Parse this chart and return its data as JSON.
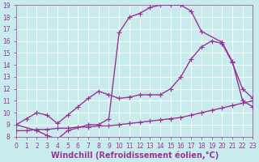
{
  "xlabel": "Windchill (Refroidissement éolien,°C)",
  "ylabel": "",
  "background_color": "#c8ecec",
  "line_color": "#993399",
  "xlim": [
    0,
    23
  ],
  "ylim": [
    8,
    19
  ],
  "xticks": [
    0,
    1,
    2,
    3,
    4,
    5,
    6,
    7,
    8,
    9,
    10,
    11,
    12,
    13,
    14,
    15,
    16,
    17,
    18,
    19,
    20,
    21,
    22,
    23
  ],
  "yticks": [
    8,
    9,
    10,
    11,
    12,
    13,
    14,
    15,
    16,
    17,
    18,
    19
  ],
  "line1_x": [
    0,
    2,
    3,
    4,
    5,
    7,
    8,
    9,
    10,
    11,
    12,
    13,
    14,
    15,
    16,
    17,
    18,
    20,
    21,
    22,
    23
  ],
  "line1_y": [
    9,
    8.5,
    8.1,
    7.8,
    8.5,
    9.0,
    9.0,
    9.5,
    16.7,
    18.0,
    18.3,
    18.8,
    19.0,
    19.0,
    19.0,
    18.5,
    16.8,
    15.9,
    14.3,
    11.0,
    10.5
  ],
  "line2_x": [
    0,
    1,
    2,
    3,
    4,
    5,
    6,
    7,
    8,
    9,
    10,
    11,
    12,
    13,
    14,
    15,
    16,
    17,
    18,
    19,
    20,
    21,
    22,
    23
  ],
  "line2_y": [
    9,
    9.5,
    10.0,
    9.8,
    9.1,
    9.8,
    10.5,
    11.2,
    11.8,
    11.5,
    11.2,
    11.3,
    11.5,
    11.5,
    11.5,
    12.0,
    13.0,
    14.5,
    15.5,
    16.0,
    15.8,
    14.2,
    12.0,
    11.2
  ],
  "line3_x": [
    0,
    1,
    2,
    3,
    4,
    5,
    6,
    7,
    8,
    9,
    10,
    11,
    12,
    13,
    14,
    15,
    16,
    17,
    18,
    19,
    20,
    21,
    22,
    23
  ],
  "line3_y": [
    8.5,
    8.5,
    8.6,
    8.6,
    8.7,
    8.7,
    8.8,
    8.8,
    8.9,
    8.9,
    9.0,
    9.1,
    9.2,
    9.3,
    9.4,
    9.5,
    9.6,
    9.8,
    10.0,
    10.2,
    10.4,
    10.6,
    10.8,
    11.0
  ],
  "grid_color": "#ffffff",
  "marker": "+",
  "markersize": 4,
  "linewidth": 1.0,
  "tick_fontsize": 5.5,
  "xlabel_fontsize": 7,
  "axis_label_color": "#993399",
  "tick_color": "#993399"
}
